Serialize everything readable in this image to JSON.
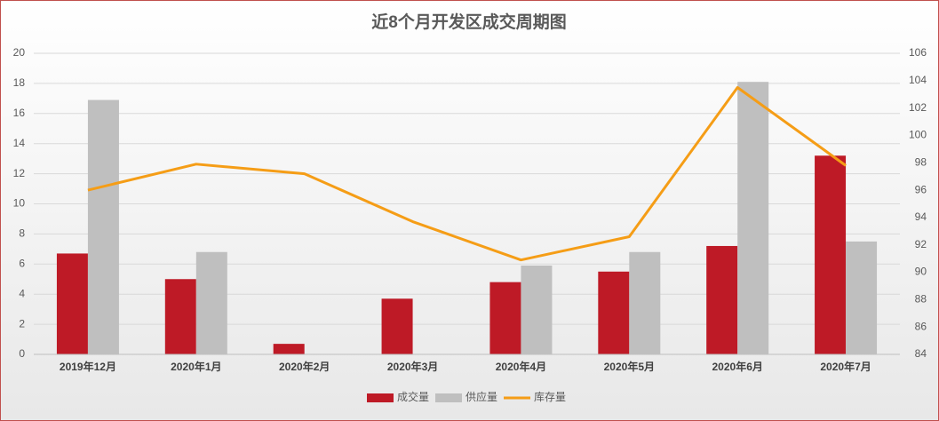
{
  "chart_data": {
    "type": "bar-line",
    "title": "近8个月开发区成交周期图",
    "categories": [
      "2019年12月",
      "2020年1月",
      "2020年2月",
      "2020年3月",
      "2020年4月",
      "2020年5月",
      "2020年6月",
      "2020年7月"
    ],
    "series": [
      {
        "name": "成交量",
        "type": "bar",
        "color": "#be1a26",
        "values": [
          6.7,
          5.0,
          0.7,
          3.7,
          4.8,
          5.5,
          7.2,
          13.2
        ]
      },
      {
        "name": "供应量",
        "type": "bar",
        "color": "#bfbfbf",
        "values": [
          16.9,
          6.8,
          null,
          null,
          5.9,
          6.8,
          18.1,
          7.5
        ]
      },
      {
        "name": "库存量",
        "type": "line",
        "axis": "y2",
        "color": "#f59d16",
        "values": [
          96.0,
          97.9,
          97.2,
          93.7,
          90.9,
          92.6,
          103.5,
          97.8
        ]
      }
    ],
    "ylim": [
      0,
      20
    ],
    "yticks": [
      0,
      2,
      4,
      6,
      8,
      10,
      12,
      14,
      16,
      18,
      20
    ],
    "y2lim": [
      84,
      106
    ],
    "y2ticks": [
      84,
      86,
      88,
      90,
      92,
      94,
      96,
      98,
      100,
      102,
      104,
      106
    ],
    "grid": true,
    "legend": "bottom"
  }
}
